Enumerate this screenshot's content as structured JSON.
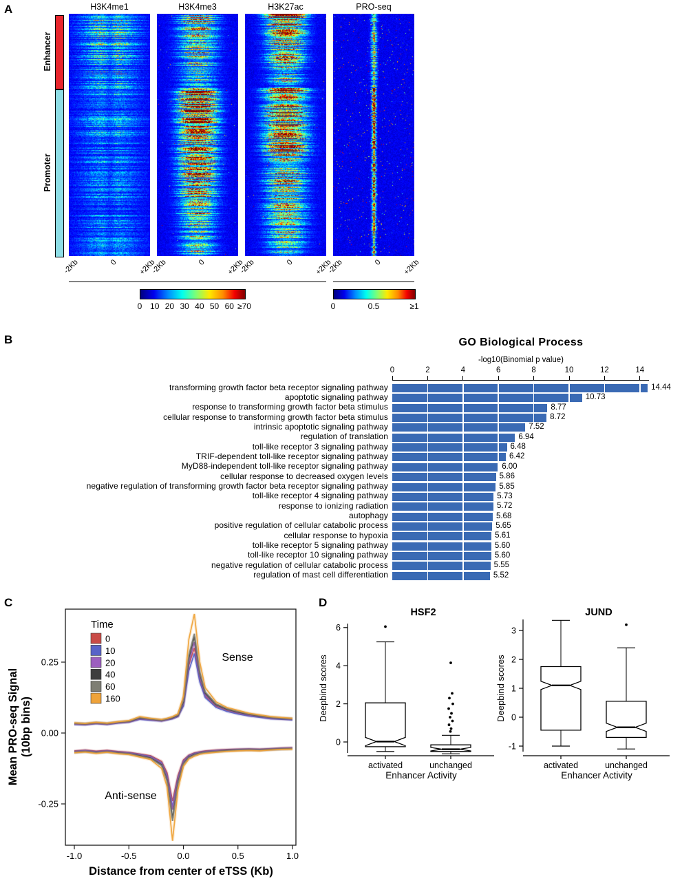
{
  "figure": {
    "panel_labels": {
      "a": "A",
      "b": "B",
      "c": "C",
      "d": "D"
    }
  },
  "panel_a": {
    "heatmap_titles": [
      "H3K4me1",
      "H3K4me3",
      "H3K27ac",
      "PRO-seq"
    ],
    "row_groups": [
      {
        "label": "Enhancer",
        "color": "#e8262d"
      },
      {
        "label": "Promoter",
        "color": "#8edee6"
      }
    ],
    "x_ticks": [
      "-2Kb",
      "0",
      "+2Kb"
    ],
    "colorbar_chip_ticks": [
      "0",
      "10",
      "20",
      "30",
      "40",
      "50",
      "60",
      "≥70"
    ],
    "colorbar_proseq_ticks": [
      "0",
      "0.5",
      "≥1"
    ]
  },
  "chart_data": [
    {
      "id": "go_biological_process",
      "type": "bar",
      "orientation": "horizontal",
      "title": "GO Biological Process",
      "xlabel": "-log10(Binomial p value)",
      "xlim": [
        0,
        14.6
      ],
      "xticks": [
        0,
        2,
        4,
        6,
        8,
        10,
        12,
        14
      ],
      "bar_color": "#3a6ab4",
      "categories": [
        "transforming growth factor beta receptor signaling pathway",
        "apoptotic signaling pathway",
        "response to transforming growth factor beta stimulus",
        "cellular response to transforming growth factor beta stimulus",
        "intrinsic apoptotic signaling pathway",
        "regulation of translation",
        "toll-like receptor 3 signaling pathway",
        "TRIF-dependent toll-like receptor signaling pathway",
        "MyD88-independent toll-like receptor signaling pathway",
        "cellular response to decreased oxygen levels",
        "negative regulation of transforming growth factor beta receptor signaling pathway",
        "toll-like receptor 4 signaling pathway",
        "response to ionizing radiation",
        "autophagy",
        "positive regulation of cellular catabolic process",
        "cellular response to hypoxia",
        "toll-like receptor 5 signaling pathway",
        "toll-like receptor 10 signaling pathway",
        "negative regulation of cellular catabolic process",
        "regulation of mast cell differentiation"
      ],
      "values": [
        14.44,
        10.73,
        8.77,
        8.72,
        7.52,
        6.94,
        6.48,
        6.42,
        6.0,
        5.86,
        5.85,
        5.73,
        5.72,
        5.68,
        5.65,
        5.61,
        5.6,
        5.6,
        5.55,
        5.52
      ]
    },
    {
      "id": "proseq_metaprofile",
      "type": "line",
      "xlabel": "Distance from center of eTSS (Kb)",
      "ylabel_line1": "Mean PRO-seq Signal",
      "ylabel_line2": "(10bp bins)",
      "legend_title": "Time",
      "annotations": {
        "sense": "Sense",
        "antisense": "Anti-sense"
      },
      "xlim": [
        -1.05,
        1.05
      ],
      "ylim": [
        -0.42,
        0.48
      ],
      "xtick_values": [
        -1.0,
        -0.5,
        0.0,
        0.5,
        1.0
      ],
      "xtick_labels": [
        "-1.0",
        "-0.5",
        "0.0",
        "0.5",
        "1.0"
      ],
      "ytick_values": [
        0.25,
        0.0,
        -0.25
      ],
      "ytick_labels": [
        "0.25",
        "0.00",
        "-0.25"
      ],
      "x": [
        -1,
        -0.9,
        -0.8,
        -0.7,
        -0.6,
        -0.5,
        -0.4,
        -0.3,
        -0.2,
        -0.15,
        -0.1,
        -0.05,
        0,
        0.05,
        0.1,
        0.15,
        0.2,
        0.3,
        0.4,
        0.5,
        0.6,
        0.7,
        0.8,
        0.9,
        1
      ],
      "series": [
        {
          "name": "0",
          "color": "#c94b47",
          "sense": [
            0.033,
            0.031,
            0.035,
            0.032,
            0.037,
            0.04,
            0.052,
            0.048,
            0.044,
            0.048,
            0.053,
            0.06,
            0.1,
            0.24,
            0.3,
            0.19,
            0.13,
            0.095,
            0.08,
            0.07,
            0.062,
            0.058,
            0.052,
            0.05,
            0.048
          ],
          "antisense": [
            -0.063,
            -0.06,
            -0.064,
            -0.061,
            -0.065,
            -0.068,
            -0.074,
            -0.08,
            -0.1,
            -0.14,
            -0.24,
            -0.15,
            -0.095,
            -0.078,
            -0.07,
            -0.066,
            -0.063,
            -0.06,
            -0.058,
            -0.057,
            -0.056,
            -0.057,
            -0.055,
            -0.053,
            -0.052
          ]
        },
        {
          "name": "10",
          "color": "#5863c8",
          "sense": [
            0.03,
            0.029,
            0.033,
            0.03,
            0.035,
            0.038,
            0.048,
            0.045,
            0.042,
            0.046,
            0.05,
            0.058,
            0.095,
            0.22,
            0.28,
            0.18,
            0.125,
            0.09,
            0.076,
            0.067,
            0.06,
            0.055,
            0.05,
            0.048,
            0.046
          ],
          "antisense": [
            -0.065,
            -0.062,
            -0.066,
            -0.063,
            -0.067,
            -0.07,
            -0.076,
            -0.083,
            -0.105,
            -0.15,
            -0.26,
            -0.16,
            -0.1,
            -0.08,
            -0.072,
            -0.068,
            -0.065,
            -0.062,
            -0.06,
            -0.058,
            -0.057,
            -0.058,
            -0.056,
            -0.054,
            -0.053
          ]
        },
        {
          "name": "20",
          "color": "#9c5fbf",
          "sense": [
            0.032,
            0.03,
            0.034,
            0.031,
            0.036,
            0.039,
            0.05,
            0.047,
            0.043,
            0.047,
            0.052,
            0.06,
            0.105,
            0.25,
            0.32,
            0.2,
            0.135,
            0.098,
            0.082,
            0.072,
            0.064,
            0.059,
            0.053,
            0.051,
            0.049
          ],
          "antisense": [
            -0.066,
            -0.063,
            -0.067,
            -0.064,
            -0.068,
            -0.071,
            -0.078,
            -0.085,
            -0.108,
            -0.155,
            -0.27,
            -0.165,
            -0.103,
            -0.082,
            -0.074,
            -0.069,
            -0.066,
            -0.063,
            -0.061,
            -0.059,
            -0.058,
            -0.059,
            -0.057,
            -0.055,
            -0.054
          ]
        },
        {
          "name": "40",
          "color": "#3e3e3e",
          "sense": [
            0.034,
            0.032,
            0.036,
            0.033,
            0.038,
            0.041,
            0.053,
            0.049,
            0.045,
            0.049,
            0.054,
            0.062,
            0.11,
            0.265,
            0.34,
            0.21,
            0.14,
            0.1,
            0.084,
            0.074,
            0.066,
            0.06,
            0.055,
            0.052,
            0.05
          ],
          "antisense": [
            -0.068,
            -0.065,
            -0.069,
            -0.066,
            -0.07,
            -0.073,
            -0.08,
            -0.088,
            -0.112,
            -0.165,
            -0.3,
            -0.175,
            -0.108,
            -0.085,
            -0.076,
            -0.071,
            -0.068,
            -0.065,
            -0.062,
            -0.06,
            -0.059,
            -0.06,
            -0.058,
            -0.056,
            -0.055
          ]
        },
        {
          "name": "60",
          "color": "#7e7e74",
          "sense": [
            0.035,
            0.033,
            0.037,
            0.034,
            0.039,
            0.042,
            0.055,
            0.05,
            0.046,
            0.05,
            0.056,
            0.064,
            0.115,
            0.275,
            0.35,
            0.215,
            0.145,
            0.103,
            0.086,
            0.076,
            0.068,
            0.062,
            0.056,
            0.053,
            0.051
          ],
          "antisense": [
            -0.069,
            -0.066,
            -0.07,
            -0.067,
            -0.071,
            -0.074,
            -0.082,
            -0.09,
            -0.115,
            -0.17,
            -0.31,
            -0.18,
            -0.11,
            -0.087,
            -0.078,
            -0.072,
            -0.069,
            -0.066,
            -0.063,
            -0.061,
            -0.06,
            -0.061,
            -0.059,
            -0.057,
            -0.056
          ]
        },
        {
          "name": "160",
          "color": "#efa33a",
          "sense": [
            0.036,
            0.034,
            0.038,
            0.035,
            0.04,
            0.044,
            0.058,
            0.052,
            0.048,
            0.052,
            0.058,
            0.068,
            0.13,
            0.33,
            0.42,
            0.25,
            0.16,
            0.11,
            0.09,
            0.08,
            0.07,
            0.064,
            0.058,
            0.055,
            0.052
          ],
          "antisense": [
            -0.07,
            -0.067,
            -0.072,
            -0.068,
            -0.073,
            -0.076,
            -0.085,
            -0.094,
            -0.125,
            -0.19,
            -0.38,
            -0.2,
            -0.118,
            -0.092,
            -0.082,
            -0.075,
            -0.072,
            -0.068,
            -0.065,
            -0.063,
            -0.062,
            -0.063,
            -0.06,
            -0.058,
            -0.057
          ]
        }
      ]
    },
    {
      "id": "hsf2",
      "type": "boxplot",
      "title": "HSF2",
      "xlabel": "Enhancer Activity",
      "ylabel": "Deepbind scores",
      "categories": [
        "activated",
        "unchanged"
      ],
      "ytick_values": [
        0,
        2,
        4,
        6
      ],
      "ylim": [
        -0.8,
        6.5
      ],
      "boxes": [
        {
          "category": "activated",
          "q1": -0.25,
          "median": 0.02,
          "q3": 2.05,
          "whisker_low": -0.5,
          "whisker_high": 5.25,
          "outliers": [
            6.05
          ]
        },
        {
          "category": "unchanged",
          "q1": -0.5,
          "median": -0.38,
          "q3": -0.15,
          "whisker_low": -0.62,
          "whisker_high": 0.35,
          "outliers": [
            4.15,
            2.55,
            2.3,
            2.0,
            1.75,
            1.5,
            1.3,
            1.1,
            0.9,
            0.7,
            0.55
          ]
        }
      ]
    },
    {
      "id": "jund",
      "type": "boxplot",
      "title": "JUND",
      "xlabel": "Enhancer Activity",
      "ylabel": "Deepbind scores",
      "categories": [
        "activated",
        "unchanged"
      ],
      "ytick_values": [
        -1,
        0,
        1,
        2,
        3
      ],
      "ylim": [
        -1.3,
        3.6
      ],
      "boxes": [
        {
          "category": "activated",
          "q1": -0.45,
          "median": 1.1,
          "q3": 1.75,
          "whisker_low": -1.0,
          "whisker_high": 3.35,
          "outliers": []
        },
        {
          "category": "unchanged",
          "q1": -0.7,
          "median": -0.35,
          "q3": 0.55,
          "whisker_low": -1.1,
          "whisker_high": 2.4,
          "outliers": [
            3.2
          ]
        }
      ]
    }
  ]
}
